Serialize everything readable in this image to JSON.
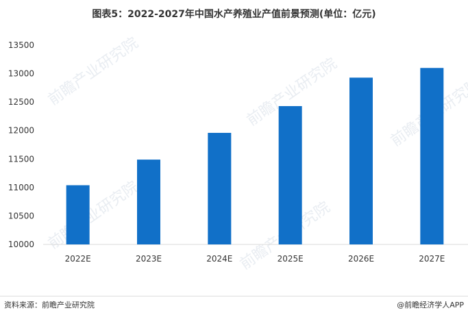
{
  "title": "图表5：2022-2027年中国水产养殖业产值前景预测(单位：亿元)",
  "source": "资料来源：前瞻产业研究院",
  "brand": "@前瞻经济学人APP",
  "watermark": "前瞻产业研究院",
  "chart_data": {
    "type": "bar",
    "title": "图表5：2022-2027年中国水产养殖业产值前景预测(单位：亿元)",
    "categories": [
      "2022E",
      "2023E",
      "2024E",
      "2025E",
      "2026E",
      "2027E"
    ],
    "values": [
      11040,
      11490,
      11960,
      12430,
      12930,
      13100
    ],
    "ylim": [
      10000,
      13500
    ],
    "yticks": [
      10000,
      10500,
      11000,
      11500,
      12000,
      12500,
      13000,
      13500
    ],
    "bar_color": "#1170c8",
    "grid": false,
    "xlabel": "",
    "ylabel": ""
  }
}
